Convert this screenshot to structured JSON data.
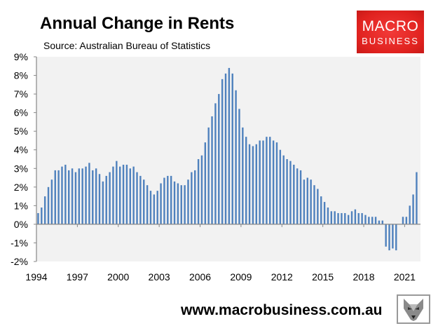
{
  "header": {
    "title": "Annual Change in Rents",
    "subtitle": "Source: Australian Bureau of Statistics"
  },
  "logo": {
    "line1": "MACRO",
    "line2": "BUSINESS",
    "color": "#e0221f"
  },
  "footer": {
    "url": "www.macrobusiness.com.au",
    "mascot_icon": "wolf-icon"
  },
  "chart_data": {
    "type": "bar",
    "title": "Annual Change in Rents",
    "subtitle": "Source: Australian Bureau of Statistics",
    "xlabel": "",
    "ylabel": "",
    "ylim": [
      -2,
      9
    ],
    "yticks": [
      "-2%",
      "-1%",
      "0%",
      "1%",
      "2%",
      "3%",
      "4%",
      "5%",
      "6%",
      "7%",
      "8%",
      "9%"
    ],
    "xticks": [
      "1994",
      "1997",
      "2000",
      "2003",
      "2006",
      "2009",
      "2012",
      "2015",
      "2018",
      "2021"
    ],
    "start_quarter": "1994 Q1",
    "frequency": "quarterly",
    "unit": "%",
    "grid": false,
    "background": "#f2f2f2",
    "bar_color": "#4f81bd",
    "values": [
      0.6,
      0.9,
      1.5,
      2.0,
      2.4,
      2.9,
      2.9,
      3.1,
      3.2,
      2.9,
      3.0,
      2.8,
      3.0,
      3.0,
      3.1,
      3.3,
      2.9,
      3.0,
      2.7,
      2.3,
      2.6,
      2.8,
      3.1,
      3.4,
      3.1,
      3.2,
      3.2,
      3.0,
      3.1,
      2.8,
      2.6,
      2.4,
      2.1,
      1.8,
      1.6,
      1.8,
      2.2,
      2.5,
      2.6,
      2.6,
      2.3,
      2.2,
      2.1,
      2.1,
      2.4,
      2.8,
      2.9,
      3.5,
      3.7,
      4.4,
      5.2,
      5.8,
      6.5,
      7.0,
      7.8,
      8.1,
      8.4,
      8.1,
      7.2,
      6.2,
      5.2,
      4.7,
      4.3,
      4.2,
      4.3,
      4.5,
      4.5,
      4.7,
      4.7,
      4.5,
      4.4,
      4.0,
      3.7,
      3.5,
      3.4,
      3.2,
      3.0,
      2.9,
      2.4,
      2.5,
      2.4,
      2.1,
      1.9,
      1.5,
      1.2,
      0.9,
      0.7,
      0.7,
      0.6,
      0.6,
      0.6,
      0.5,
      0.7,
      0.8,
      0.6,
      0.6,
      0.5,
      0.4,
      0.4,
      0.4,
      0.2,
      0.2,
      -1.2,
      -1.4,
      -1.3,
      -1.4,
      0,
      0.4,
      0.4,
      1.0,
      1.6,
      2.8
    ]
  }
}
